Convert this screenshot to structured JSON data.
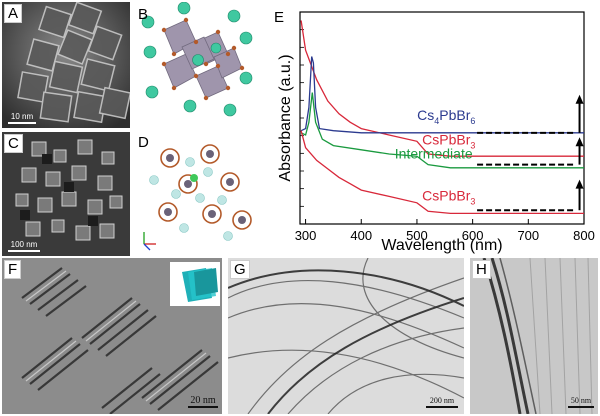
{
  "panels": {
    "A": {
      "label": "A",
      "scale": "10 nm"
    },
    "B": {
      "label": "B"
    },
    "C": {
      "label": "C",
      "scale": "100 nm"
    },
    "D": {
      "label": "D"
    },
    "F": {
      "label": "F",
      "scale": "20 nm"
    },
    "G": {
      "label": "G",
      "scale": "200 nm"
    },
    "H": {
      "label": "H",
      "scale": "50 nm"
    }
  },
  "chart_data": {
    "type": "line",
    "panel_label": "E",
    "xlabel": "Wavelength (nm)",
    "ylabel": "Absorbance (a.u.)",
    "xlim": [
      290,
      800
    ],
    "xticks": [
      300,
      400,
      500,
      600,
      700,
      800
    ],
    "colors": {
      "red": "#d8283a",
      "blue": "#2b3a8f",
      "green": "#1a9a3f"
    },
    "series": [
      {
        "name": "CsPbBr3",
        "color": "red",
        "points": [
          [
            292,
            0.96
          ],
          [
            300,
            0.82
          ],
          [
            320,
            0.68
          ],
          [
            340,
            0.58
          ],
          [
            360,
            0.52
          ],
          [
            380,
            0.48
          ],
          [
            400,
            0.45
          ],
          [
            450,
            0.42
          ],
          [
            500,
            0.39
          ],
          [
            520,
            0.33
          ],
          [
            560,
            0.32
          ],
          [
            800,
            0.32
          ]
        ]
      },
      {
        "name": "Cs4PbBr6",
        "color": "blue",
        "points": [
          [
            292,
            0.44
          ],
          [
            300,
            0.45
          ],
          [
            306,
            0.55
          ],
          [
            311,
            0.79
          ],
          [
            314,
            0.76
          ],
          [
            318,
            0.55
          ],
          [
            325,
            0.45
          ],
          [
            350,
            0.44
          ],
          [
            400,
            0.43
          ],
          [
            500,
            0.43
          ],
          [
            800,
            0.43
          ]
        ]
      },
      {
        "name": "Intermediate",
        "color": "green",
        "points": [
          [
            292,
            0.43
          ],
          [
            300,
            0.42
          ],
          [
            306,
            0.48
          ],
          [
            312,
            0.62
          ],
          [
            318,
            0.48
          ],
          [
            330,
            0.4
          ],
          [
            350,
            0.37
          ],
          [
            400,
            0.35
          ],
          [
            450,
            0.33
          ],
          [
            500,
            0.32
          ],
          [
            520,
            0.28
          ],
          [
            560,
            0.265
          ],
          [
            800,
            0.265
          ]
        ]
      },
      {
        "name": "CsPbBr3",
        "color": "red",
        "points": [
          [
            292,
            0.44
          ],
          [
            300,
            0.36
          ],
          [
            320,
            0.3
          ],
          [
            340,
            0.26
          ],
          [
            360,
            0.22
          ],
          [
            380,
            0.19
          ],
          [
            400,
            0.16
          ],
          [
            450,
            0.13
          ],
          [
            500,
            0.1
          ],
          [
            520,
            0.06
          ],
          [
            560,
            0.05
          ],
          [
            800,
            0.05
          ]
        ]
      }
    ],
    "labels": [
      {
        "text": "CsPbBr",
        "sub": "3",
        "color": "red"
      },
      {
        "text": "Cs",
        "sub": "4",
        "text2": "PbBr",
        "sub2": "6",
        "color": "blue"
      },
      {
        "text": "Intermediate",
        "sub": "",
        "color": "green"
      },
      {
        "text": "CsPbBr",
        "sub": "3",
        "color": "red"
      }
    ]
  }
}
